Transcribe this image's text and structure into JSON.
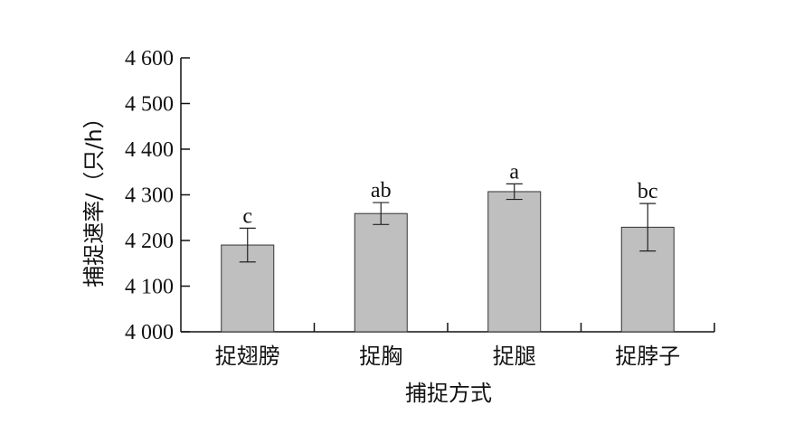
{
  "chart_data": {
    "type": "bar",
    "categories": [
      "捉翅膀",
      "捉胸",
      "捉腿",
      "捉脖子"
    ],
    "values": [
      4190,
      4259,
      4307,
      4229
    ],
    "errors": [
      37,
      24,
      17,
      52
    ],
    "significance": [
      "c",
      "ab",
      "a",
      "bc"
    ],
    "xlabel": "捕捉方式",
    "ylabel": "捕捉速率/（只/h）",
    "ylim": [
      4000,
      4600
    ],
    "yticks": [
      4000,
      4100,
      4200,
      4300,
      4400,
      4500,
      4600
    ],
    "ytick_labels": [
      "4 000",
      "4 100",
      "4 200",
      "4 300",
      "4 400",
      "4 500",
      "4 600"
    ],
    "bar_color": "#bfbfbf",
    "grid": false
  }
}
